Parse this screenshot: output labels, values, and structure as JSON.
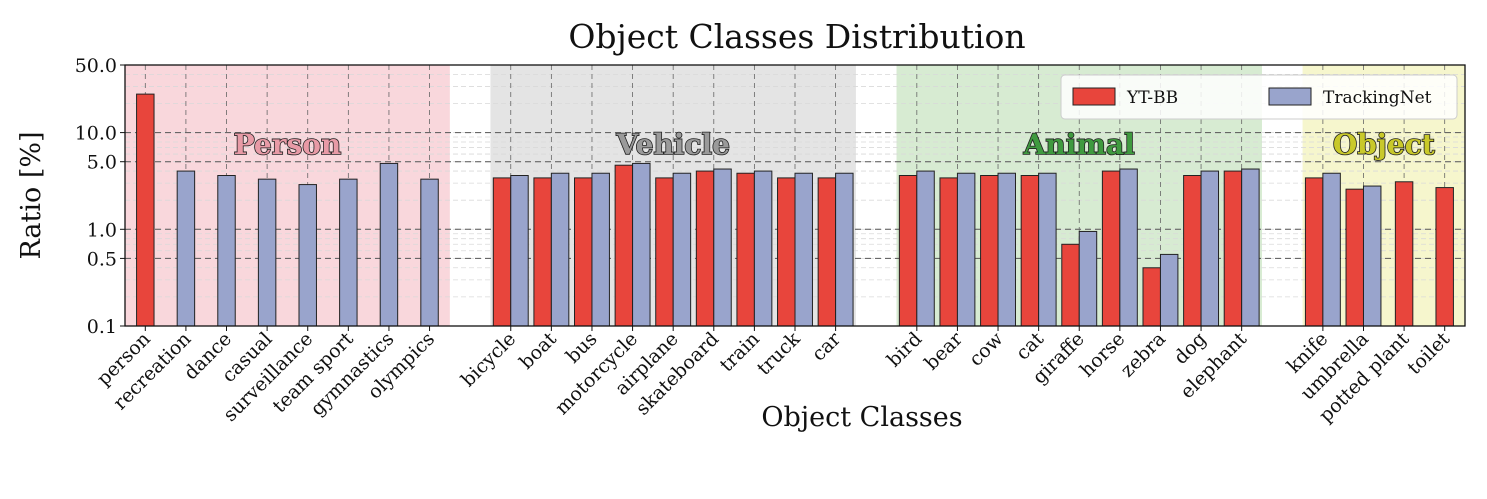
{
  "chart_data": {
    "type": "bar",
    "title": "Object Classes Distribution",
    "xlabel": "Object Classes",
    "ylabel": "Ratio [%]",
    "yscale": "log",
    "ylim": [
      0.1,
      50.0
    ],
    "yticks": [
      "0.1",
      "0.5",
      "1.0",
      "5.0",
      "10.0",
      "50.0"
    ],
    "grid": true,
    "legend_position": "top-right",
    "series": [
      {
        "name": "YT-BB",
        "color": "#e8453c"
      },
      {
        "name": "TrackingNet",
        "color": "#99a4cc"
      }
    ],
    "groups": [
      {
        "label": "Person",
        "bg_color": "#f9d7dc",
        "text_color": "#e89aa6",
        "categories": [
          {
            "name": "person",
            "yt_bb": 25.0,
            "trackingnet": null
          },
          {
            "name": "recreation",
            "yt_bb": null,
            "trackingnet": 4.0
          },
          {
            "name": "dance",
            "yt_bb": null,
            "trackingnet": 3.6
          },
          {
            "name": "casual",
            "yt_bb": null,
            "trackingnet": 3.3
          },
          {
            "name": "surveillance",
            "yt_bb": null,
            "trackingnet": 2.9
          },
          {
            "name": "team sport",
            "yt_bb": null,
            "trackingnet": 3.3
          },
          {
            "name": "gymnastics",
            "yt_bb": null,
            "trackingnet": 4.8
          },
          {
            "name": "olympics",
            "yt_bb": null,
            "trackingnet": 3.3
          }
        ]
      },
      {
        "label": "Vehicle",
        "bg_color": "#e4e4e4",
        "text_color": "#9a9a9a",
        "categories": [
          {
            "name": "bicycle",
            "yt_bb": 3.4,
            "trackingnet": 3.6
          },
          {
            "name": "boat",
            "yt_bb": 3.4,
            "trackingnet": 3.8
          },
          {
            "name": "bus",
            "yt_bb": 3.4,
            "trackingnet": 3.8
          },
          {
            "name": "motorcycle",
            "yt_bb": 4.6,
            "trackingnet": 4.8
          },
          {
            "name": "airplane",
            "yt_bb": 3.4,
            "trackingnet": 3.8
          },
          {
            "name": "skateboard",
            "yt_bb": 4.0,
            "trackingnet": 4.2
          },
          {
            "name": "train",
            "yt_bb": 3.8,
            "trackingnet": 4.0
          },
          {
            "name": "truck",
            "yt_bb": 3.4,
            "trackingnet": 3.8
          },
          {
            "name": "car",
            "yt_bb": 3.4,
            "trackingnet": 3.8
          }
        ]
      },
      {
        "label": "Animal",
        "bg_color": "#d7ebd2",
        "text_color": "#3f9a3f",
        "categories": [
          {
            "name": "bird",
            "yt_bb": 3.6,
            "trackingnet": 4.0
          },
          {
            "name": "bear",
            "yt_bb": 3.4,
            "trackingnet": 3.8
          },
          {
            "name": "cow",
            "yt_bb": 3.6,
            "trackingnet": 3.8
          },
          {
            "name": "cat",
            "yt_bb": 3.6,
            "trackingnet": 3.8
          },
          {
            "name": "giraffe",
            "yt_bb": 0.7,
            "trackingnet": 0.95
          },
          {
            "name": "horse",
            "yt_bb": 4.0,
            "trackingnet": 4.2
          },
          {
            "name": "zebra",
            "yt_bb": 0.4,
            "trackingnet": 0.55
          },
          {
            "name": "dog",
            "yt_bb": 3.6,
            "trackingnet": 4.0
          },
          {
            "name": "elephant",
            "yt_bb": 4.0,
            "trackingnet": 4.2
          }
        ]
      },
      {
        "label": "Object",
        "bg_color": "#f6f6cd",
        "text_color": "#c9c92a",
        "categories": [
          {
            "name": "knife",
            "yt_bb": 3.4,
            "trackingnet": 3.8
          },
          {
            "name": "umbrella",
            "yt_bb": 2.6,
            "trackingnet": 2.8
          },
          {
            "name": "potted plant",
            "yt_bb": 3.1,
            "trackingnet": null
          },
          {
            "name": "toilet",
            "yt_bb": 2.7,
            "trackingnet": null
          }
        ]
      }
    ]
  }
}
